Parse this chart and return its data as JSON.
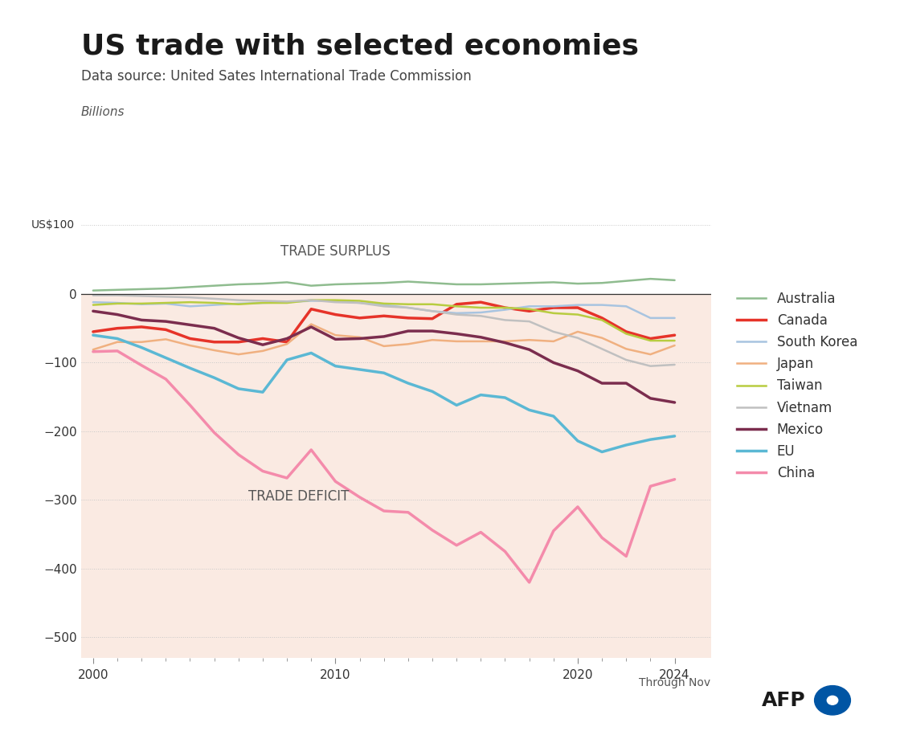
{
  "title": "US trade with selected economies",
  "subtitle": "Data source: United Sates International Trade Commission",
  "billions_label": "Billions",
  "us100_label": "US$100",
  "xlabel_note": "Through Nov",
  "trade_surplus_label": "TRADE SURPLUS",
  "trade_deficit_label": "TRADE DEFICIT",
  "background_color": "#ffffff",
  "fill_color": "#faeae2",
  "years": [
    2000,
    2001,
    2002,
    2003,
    2004,
    2005,
    2006,
    2007,
    2008,
    2009,
    2010,
    2011,
    2012,
    2013,
    2014,
    2015,
    2016,
    2017,
    2018,
    2019,
    2020,
    2021,
    2022,
    2023,
    2024
  ],
  "series": {
    "Australia": {
      "color": "#8fbc8f",
      "linewidth": 1.8,
      "values": [
        5,
        6,
        7,
        8,
        10,
        12,
        14,
        15,
        17,
        12,
        14,
        15,
        16,
        18,
        16,
        14,
        14,
        15,
        16,
        17,
        15,
        16,
        19,
        22,
        20
      ]
    },
    "Canada": {
      "color": "#e63329",
      "linewidth": 2.5,
      "values": [
        -55,
        -50,
        -48,
        -52,
        -65,
        -70,
        -70,
        -65,
        -70,
        -22,
        -30,
        -35,
        -32,
        -35,
        -36,
        -15,
        -12,
        -20,
        -25,
        -20,
        -20,
        -35,
        -55,
        -65,
        -60
      ]
    },
    "South Korea": {
      "color": "#a8c4e0",
      "linewidth": 1.8,
      "values": [
        -12,
        -13,
        -15,
        -14,
        -18,
        -16,
        -14,
        -13,
        -12,
        -10,
        -10,
        -13,
        -16,
        -20,
        -25,
        -28,
        -27,
        -23,
        -18,
        -18,
        -16,
        -16,
        -18,
        -35,
        -35
      ]
    },
    "Japan": {
      "color": "#f0b080",
      "linewidth": 1.8,
      "values": [
        -81,
        -70,
        -70,
        -66,
        -75,
        -82,
        -88,
        -83,
        -73,
        -44,
        -60,
        -63,
        -76,
        -73,
        -67,
        -69,
        -69,
        -69,
        -67,
        -69,
        -55,
        -64,
        -80,
        -88,
        -75
      ]
    },
    "Taiwan": {
      "color": "#b8cc40",
      "linewidth": 1.8,
      "values": [
        -16,
        -14,
        -14,
        -13,
        -12,
        -13,
        -15,
        -13,
        -13,
        -9,
        -9,
        -10,
        -14,
        -15,
        -15,
        -18,
        -20,
        -20,
        -22,
        -28,
        -30,
        -38,
        -58,
        -68,
        -68
      ]
    },
    "Vietnam": {
      "color": "#c0c0c0",
      "linewidth": 1.8,
      "values": [
        -2,
        -2,
        -3,
        -4,
        -5,
        -7,
        -9,
        -10,
        -11,
        -9,
        -12,
        -13,
        -18,
        -20,
        -25,
        -30,
        -32,
        -38,
        -40,
        -55,
        -64,
        -80,
        -96,
        -105,
        -103
      ]
    },
    "Mexico": {
      "color": "#7b2d4e",
      "linewidth": 2.5,
      "values": [
        -25,
        -30,
        -38,
        -40,
        -45,
        -50,
        -64,
        -74,
        -65,
        -48,
        -66,
        -65,
        -62,
        -54,
        -54,
        -58,
        -63,
        -71,
        -81,
        -100,
        -112,
        -130,
        -130,
        -152,
        -158
      ]
    },
    "EU": {
      "color": "#5bb8d4",
      "linewidth": 2.5,
      "values": [
        -60,
        -65,
        -78,
        -93,
        -108,
        -122,
        -138,
        -143,
        -96,
        -86,
        -105,
        -110,
        -115,
        -130,
        -142,
        -162,
        -147,
        -151,
        -169,
        -178,
        -214,
        -230,
        -220,
        -212,
        -207
      ]
    },
    "China": {
      "color": "#f48bab",
      "linewidth": 2.5,
      "values": [
        -84,
        -83,
        -104,
        -124,
        -162,
        -202,
        -234,
        -258,
        -268,
        -227,
        -273,
        -296,
        -316,
        -318,
        -344,
        -366,
        -347,
        -375,
        -420,
        -345,
        -310,
        -355,
        -382,
        -280,
        -270
      ]
    }
  },
  "series_order": [
    "Australia",
    "Canada",
    "South Korea",
    "Japan",
    "Taiwan",
    "Vietnam",
    "Mexico",
    "EU",
    "China"
  ],
  "ylim": [
    -530,
    130
  ],
  "xlim_min": 1999.5,
  "xlim_max": 2025.5,
  "yticks": [
    100,
    0,
    -100,
    -200,
    -300,
    -400,
    -500
  ],
  "ytick_labels": [
    "",
    "0",
    "−100",
    "−200",
    "−300",
    "−400",
    "−500"
  ],
  "xticks_major": [
    2000,
    2010,
    2020,
    2024
  ],
  "grid_color": "#c8c8c8",
  "zero_line_color": "#333333",
  "afp_blue": "#0055a4",
  "top_bar_color": "#222222"
}
